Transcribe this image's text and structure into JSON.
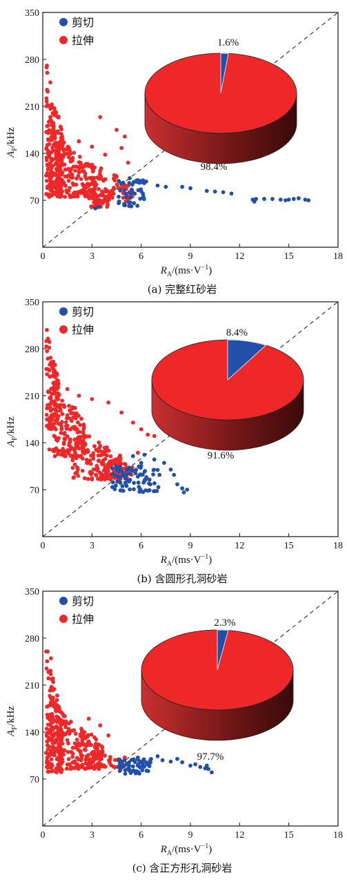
{
  "colors": {
    "shear": "#2150a8",
    "tension": "#ee2828",
    "pie_side_dark": "#6e1616",
    "pie_side_light": "#c93030",
    "axis": "#111111"
  },
  "legend": {
    "shear_label": "剪切",
    "tension_label": "拉伸"
  },
  "axis_text": {
    "y_main": "A",
    "y_sub": "F",
    "y_unit": "/kHz",
    "x_main": "R",
    "x_sub": "A",
    "x_unit": "/(ms·V",
    "x_unit_sup": "−1",
    "x_unit_close": ")"
  },
  "chart_data": [
    {
      "type": "scatter",
      "caption": "(a) 完整红砂岩",
      "xlim": [
        0,
        18
      ],
      "ylim": [
        0,
        350
      ],
      "xticks": [
        0,
        3,
        6,
        9,
        12,
        15,
        18
      ],
      "yticks": [
        70,
        140,
        210,
        280,
        350
      ],
      "diagonal": true,
      "pie": {
        "shear_pct": "1.6%",
        "tension_pct": "98.4%",
        "shear": 1.6,
        "tension": 98.4
      },
      "tension_clusters": [
        {
          "x": [
            0.2,
            1.2
          ],
          "y": [
            75,
            285
          ],
          "n": 230
        },
        {
          "x": [
            0.8,
            3.2
          ],
          "y": [
            75,
            170
          ],
          "n": 160
        },
        {
          "x": [
            2.5,
            5.5
          ],
          "y": [
            68,
            130
          ],
          "n": 90
        },
        {
          "x": [
            2.8,
            4.0
          ],
          "y": [
            60,
            95
          ],
          "n": 25
        }
      ],
      "tension_points": [
        [
          3.5,
          194
        ],
        [
          4.5,
          175
        ],
        [
          5.0,
          165
        ],
        [
          2.2,
          158
        ],
        [
          3.0,
          150
        ],
        [
          4.8,
          148
        ],
        [
          3.8,
          138
        ],
        [
          5.2,
          126
        ],
        [
          3.2,
          58
        ]
      ],
      "shear_clusters": [
        {
          "x": [
            4.6,
            6.2
          ],
          "y": [
            60,
            100
          ],
          "n": 45
        }
      ],
      "shear_points": [
        [
          5.3,
          103
        ],
        [
          6.3,
          98
        ],
        [
          7.0,
          92
        ],
        [
          7.5,
          90
        ],
        [
          8.5,
          90
        ],
        [
          9.0,
          88
        ],
        [
          10.0,
          84
        ],
        [
          10.5,
          83
        ],
        [
          11.0,
          82
        ],
        [
          11.5,
          80
        ],
        [
          12.8,
          71
        ],
        [
          13.0,
          72
        ],
        [
          12.9,
          68
        ],
        [
          13.5,
          72
        ],
        [
          14.0,
          72
        ],
        [
          14.5,
          71
        ],
        [
          14.8,
          70
        ],
        [
          15.0,
          71
        ],
        [
          15.3,
          72
        ],
        [
          15.6,
          73
        ],
        [
          16.0,
          71
        ],
        [
          16.2,
          70
        ],
        [
          3.2,
          58
        ],
        [
          3.4,
          60
        ]
      ]
    },
    {
      "type": "scatter",
      "caption": "(b) 含圆形孔洞砂岩",
      "xlim": [
        0,
        18
      ],
      "ylim": [
        0,
        350
      ],
      "xticks": [
        0,
        3,
        6,
        9,
        12,
        15,
        18
      ],
      "yticks": [
        70,
        140,
        210,
        280,
        350
      ],
      "diagonal": true,
      "pie": {
        "shear_pct": "8.4%",
        "tension_pct": "91.6%",
        "shear": 8.4,
        "tension": 91.6
      },
      "tension_clusters": [
        {
          "x": [
            0.2,
            1.0
          ],
          "y": [
            160,
            315
          ],
          "n": 110
        },
        {
          "x": [
            0.6,
            2.6
          ],
          "y": [
            120,
            235
          ],
          "n": 150
        },
        {
          "x": [
            1.8,
            4.8
          ],
          "y": [
            85,
            165
          ],
          "n": 130
        },
        {
          "x": [
            3.5,
            5.5
          ],
          "y": [
            85,
            125
          ],
          "n": 60
        }
      ],
      "tension_points": [
        [
          1.5,
          220
        ],
        [
          2.2,
          210
        ],
        [
          3.0,
          205
        ],
        [
          4.0,
          200
        ],
        [
          4.8,
          185
        ],
        [
          5.5,
          170
        ],
        [
          6.0,
          160
        ],
        [
          6.4,
          152
        ],
        [
          6.8,
          150
        ],
        [
          0.4,
          130
        ],
        [
          5.8,
          125
        ],
        [
          3.0,
          95
        ]
      ],
      "shear_clusters": [
        {
          "x": [
            4.2,
            7.2
          ],
          "y": [
            65,
            105
          ],
          "n": 80
        }
      ],
      "shear_points": [
        [
          5.5,
          120
        ],
        [
          6.2,
          122
        ],
        [
          6.8,
          115
        ],
        [
          7.4,
          110
        ],
        [
          7.8,
          100
        ],
        [
          8.0,
          92
        ],
        [
          8.2,
          78
        ],
        [
          8.5,
          72
        ],
        [
          8.8,
          70
        ],
        [
          8.6,
          66
        ],
        [
          6.0,
          110
        ]
      ]
    },
    {
      "type": "scatter",
      "caption": "(c) 含正方形孔洞砂岩",
      "xlim": [
        0,
        18
      ],
      "ylim": [
        0,
        350
      ],
      "xticks": [
        0,
        3,
        6,
        9,
        12,
        15,
        18
      ],
      "yticks": [
        70,
        140,
        210,
        280,
        350
      ],
      "diagonal": true,
      "pie": {
        "shear_pct": "2.3%",
        "tension_pct": "97.7%",
        "shear": 2.3,
        "tension": 97.7
      },
      "tension_clusters": [
        {
          "x": [
            0.2,
            1.2
          ],
          "y": [
            80,
            265
          ],
          "n": 180
        },
        {
          "x": [
            0.8,
            3.6
          ],
          "y": [
            85,
            175
          ],
          "n": 190
        },
        {
          "x": [
            3.0,
            5.0
          ],
          "y": [
            88,
            125
          ],
          "n": 40
        }
      ],
      "tension_points": [
        [
          2.8,
          160
        ],
        [
          3.5,
          150
        ],
        [
          4.0,
          135
        ],
        [
          0.3,
          260
        ],
        [
          0.5,
          250
        ]
      ],
      "shear_clusters": [
        {
          "x": [
            4.6,
            6.6
          ],
          "y": [
            75,
            100
          ],
          "n": 55
        }
      ],
      "shear_points": [
        [
          5.8,
          102
        ],
        [
          6.6,
          100
        ],
        [
          7.0,
          104
        ],
        [
          7.3,
          98
        ],
        [
          7.8,
          96
        ],
        [
          8.2,
          100
        ],
        [
          8.5,
          95
        ],
        [
          9.0,
          90
        ],
        [
          9.3,
          92
        ],
        [
          9.6,
          88
        ],
        [
          9.9,
          86
        ],
        [
          10.1,
          85
        ],
        [
          10.3,
          80
        ],
        [
          10.0,
          90
        ]
      ]
    }
  ]
}
